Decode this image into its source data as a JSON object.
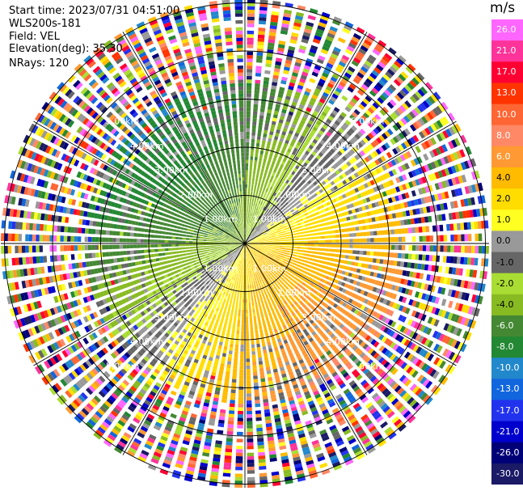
{
  "header": {
    "start_time": "Start time: 2023/07/31 04:51:00",
    "instrument": "WLS200s-181",
    "field": "Field: VEL",
    "elevation": "Elevation(deg): 35.30",
    "nrays": "NRays: 120"
  },
  "colorbar": {
    "unit": "m/s",
    "labels": [
      "26.0",
      "21.0",
      "17.0",
      "13.0",
      "10.0",
      "8.0",
      "6.0",
      "4.0",
      "2.0",
      "1.0",
      "0.0",
      "-1.0",
      "-2.0",
      "-4.0",
      "-6.0",
      "-8.0",
      "-10.0",
      "-13.0",
      "-17.0",
      "-21.0",
      "-26.0",
      "-30.0"
    ],
    "bands": [
      "#ff66ff",
      "#ff3399",
      "#ff0033",
      "#ff3300",
      "#ff6633",
      "#ff8866",
      "#ff9933",
      "#ffbb00",
      "#ffdd00",
      "#ffff22",
      "#999999",
      "#666666",
      "#aadd33",
      "#88bb22",
      "#448833",
      "#228833",
      "#2288cc",
      "#1166dd",
      "#2233ee",
      "#0000cc",
      "#000077",
      "#1a1a66"
    ]
  },
  "chart_data": {
    "type": "ppi",
    "field": "VEL",
    "units": "m/s",
    "elevation_deg": 35.3,
    "n_rays": 120,
    "range_ring_labels": [
      "1.00km",
      "2.00km",
      "3.00km",
      "4.00km",
      "5.00km"
    ],
    "range_rings_km": [
      1,
      2,
      3,
      4,
      5
    ],
    "max_range_km": 5.1,
    "color_levels": [
      26,
      21,
      17,
      13,
      10,
      8,
      6,
      4,
      2,
      1,
      0,
      -1,
      -2,
      -4,
      -6,
      -8,
      -10,
      -13,
      -17,
      -21,
      -26,
      -30
    ],
    "wind_pattern": {
      "approx_center_velocity_amplitude_ms": 6,
      "negative_sector": "north-west",
      "positive_sector": "south-south-east",
      "noisy_beyond_km": 3.3
    }
  }
}
